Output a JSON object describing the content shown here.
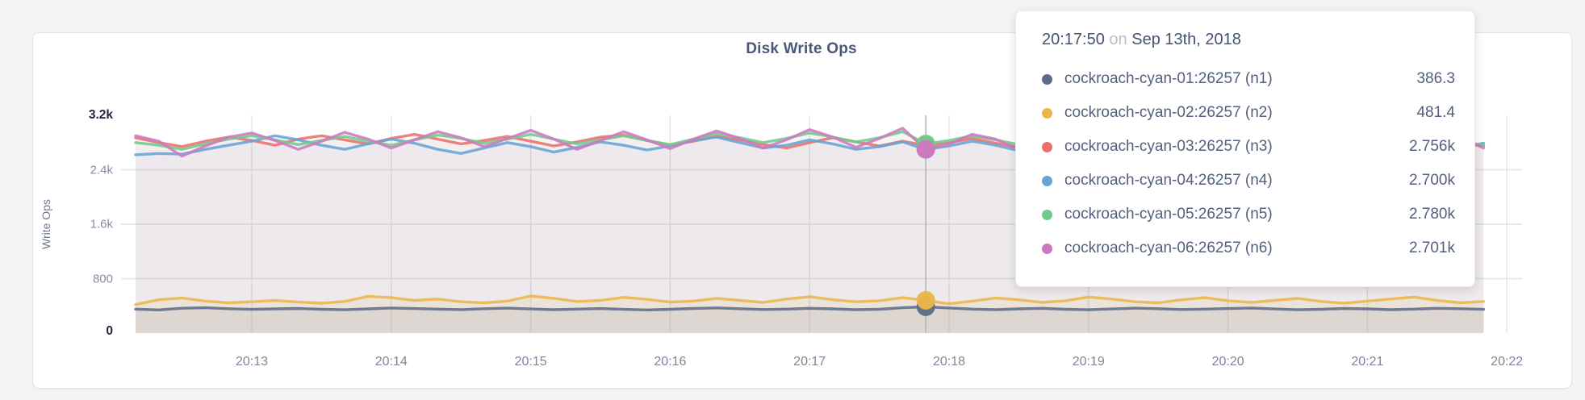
{
  "page": {
    "background": "#f4f4f6"
  },
  "chart": {
    "title": "Disk Write Ops",
    "y_axis": {
      "title": "Write Ops",
      "ticks": [
        "3.2k",
        "2.4k",
        "1.6k",
        "800",
        "0"
      ]
    },
    "x_axis": {
      "ticks": [
        "20:13",
        "20:14",
        "20:15",
        "20:16",
        "20:17",
        "20:18",
        "20:19",
        "20:20",
        "20:21",
        "20:22"
      ]
    }
  },
  "tooltip": {
    "time": "20:17:50",
    "conjunction": "on",
    "date": "Sep 13th, 2018",
    "rows": [
      {
        "label": "cockroach-cyan-01:26257 (n1)",
        "value": "386.3",
        "color": "#5f6c87"
      },
      {
        "label": "cockroach-cyan-02:26257 (n2)",
        "value": "481.4",
        "color": "#eab64a"
      },
      {
        "label": "cockroach-cyan-03:26257 (n3)",
        "value": "2.756k",
        "color": "#ea6f6b"
      },
      {
        "label": "cockroach-cyan-04:26257 (n4)",
        "value": "2.700k",
        "color": "#68a3d6"
      },
      {
        "label": "cockroach-cyan-05:26257 (n5)",
        "value": "2.780k",
        "color": "#6fcb8c"
      },
      {
        "label": "cockroach-cyan-06:26257 (n6)",
        "value": "2.701k",
        "color": "#ce79bf"
      }
    ]
  },
  "chart_data": {
    "type": "line",
    "title": "Disk Write Ops",
    "xlabel": "",
    "ylabel": "Write Ops",
    "ylim": [
      0,
      3200
    ],
    "y_ticks": [
      0,
      800,
      1600,
      2400,
      3200
    ],
    "y_tick_labels": [
      "0",
      "800",
      "1.6k",
      "2.4k",
      "3.2k"
    ],
    "x_tick_labels": [
      "20:13",
      "20:14",
      "20:15",
      "20:16",
      "20:17",
      "20:18",
      "20:19",
      "20:20",
      "20:21",
      "20:22"
    ],
    "x_start_time": "20:12:10",
    "x_step_seconds": 10,
    "grid": true,
    "legend_position": "tooltip",
    "hover": {
      "time": "20:17:50",
      "date": "Sep 13th, 2018",
      "t_seconds": 340
    },
    "series": [
      {
        "name": "cockroach-cyan-01:26257 (n1)",
        "color": "#5f6c87",
        "values": [
          352,
          340,
          365,
          372,
          358,
          348,
          355,
          362,
          350,
          342,
          356,
          368,
          360,
          352,
          345,
          358,
          366,
          354,
          344,
          352,
          360,
          348,
          340,
          350,
          362,
          370,
          358,
          346,
          352,
          364,
          356,
          344,
          350,
          372,
          386.3,
          368,
          352,
          344,
          356,
          364,
          350,
          342,
          354,
          366,
          358,
          346,
          352,
          360,
          368,
          354,
          342,
          350,
          362,
          356,
          344,
          352,
          364,
          358,
          348
        ]
      },
      {
        "name": "cockroach-cyan-02:26257 (n2)",
        "color": "#eab64a",
        "values": [
          420,
          490,
          515,
          470,
          445,
          460,
          480,
          455,
          440,
          465,
          540,
          520,
          480,
          500,
          460,
          445,
          470,
          545,
          510,
          465,
          480,
          525,
          495,
          455,
          470,
          510,
          480,
          450,
          500,
          535,
          490,
          460,
          475,
          520,
          481.4,
          430,
          470,
          515,
          490,
          450,
          475,
          530,
          500,
          460,
          445,
          490,
          520,
          475,
          450,
          480,
          510,
          465,
          440,
          470,
          500,
          530,
          480,
          445,
          465
        ]
      },
      {
        "name": "cockroach-cyan-03:26257 (n3)",
        "color": "#ea6f6b",
        "values": [
          2870,
          2800,
          2740,
          2820,
          2880,
          2830,
          2760,
          2850,
          2900,
          2840,
          2780,
          2860,
          2920,
          2850,
          2780,
          2830,
          2890,
          2820,
          2750,
          2810,
          2880,
          2910,
          2830,
          2760,
          2820,
          2890,
          2840,
          2770,
          2720,
          2800,
          2870,
          2810,
          2750,
          2820,
          2756,
          2800,
          2860,
          2790,
          2730,
          2810,
          2880,
          2820,
          2760,
          2840,
          2900,
          2950,
          2860,
          2780,
          2820,
          2760,
          2700,
          2780,
          2850,
          2800,
          2740,
          2810,
          2870,
          2800,
          2750
        ]
      },
      {
        "name": "cockroach-cyan-04:26257 (n4)",
        "color": "#68a3d6",
        "values": [
          2620,
          2640,
          2630,
          2700,
          2760,
          2820,
          2900,
          2840,
          2760,
          2700,
          2780,
          2850,
          2790,
          2700,
          2640,
          2720,
          2800,
          2740,
          2660,
          2730,
          2810,
          2760,
          2690,
          2750,
          2830,
          2880,
          2800,
          2720,
          2760,
          2840,
          2780,
          2700,
          2740,
          2810,
          2700,
          2750,
          2820,
          2760,
          2680,
          2740,
          2820,
          2870,
          2790,
          2710,
          2750,
          2830,
          2770,
          2690,
          2730,
          2800,
          2850,
          2780,
          2700,
          2750,
          2820,
          2760,
          2680,
          2730,
          2790
        ]
      },
      {
        "name": "cockroach-cyan-05:26257 (n5)",
        "color": "#6fcb8c",
        "values": [
          2800,
          2760,
          2700,
          2780,
          2850,
          2900,
          2840,
          2770,
          2830,
          2890,
          2820,
          2760,
          2840,
          2910,
          2860,
          2790,
          2850,
          2920,
          2850,
          2780,
          2840,
          2900,
          2830,
          2770,
          2850,
          2930,
          2870,
          2800,
          2860,
          2940,
          2880,
          2810,
          2870,
          2960,
          2780,
          2830,
          2900,
          2840,
          2770,
          2840,
          2910,
          2850,
          2780,
          2850,
          2920,
          2860,
          2790,
          2850,
          2910,
          2840,
          2780,
          2840,
          2900,
          2830,
          2760,
          2830,
          2890,
          2820,
          2760
        ]
      },
      {
        "name": "cockroach-cyan-06:26257 (n6)",
        "color": "#ce79bf",
        "values": [
          2900,
          2820,
          2600,
          2750,
          2880,
          2940,
          2830,
          2700,
          2820,
          2950,
          2850,
          2720,
          2840,
          2960,
          2870,
          2740,
          2860,
          2980,
          2850,
          2700,
          2830,
          2960,
          2840,
          2710,
          2850,
          2970,
          2860,
          2720,
          2840,
          2990,
          2880,
          2730,
          2860,
          3010,
          2701,
          2780,
          2920,
          2850,
          2700,
          2820,
          2950,
          2860,
          2720,
          2850,
          2980,
          2900,
          2760,
          2870,
          3000,
          2880,
          2740,
          2860,
          2970,
          2840,
          2700,
          2830,
          2950,
          2860,
          2720
        ]
      }
    ]
  }
}
